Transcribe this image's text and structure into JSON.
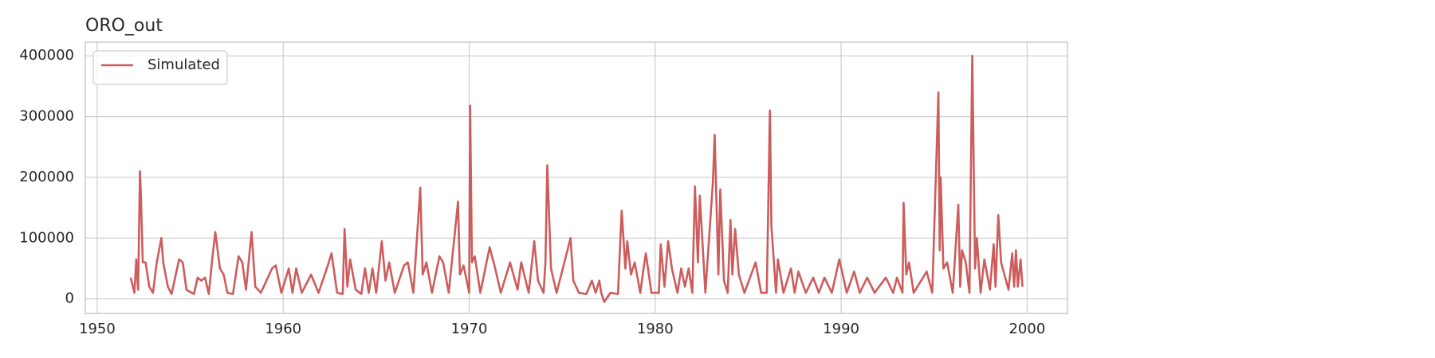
{
  "chart_data": {
    "type": "line",
    "title": "ORO_out",
    "x": [
      1951.8,
      1952.0,
      1952.1,
      1952.2,
      1952.3,
      1952.35,
      1952.45,
      1952.6,
      1952.8,
      1953.0,
      1953.2,
      1953.45,
      1953.55,
      1953.8,
      1954.0,
      1954.4,
      1954.6,
      1954.8,
      1955.2,
      1955.4,
      1955.6,
      1955.8,
      1956.0,
      1956.2,
      1956.35,
      1956.6,
      1956.8,
      1957.0,
      1957.3,
      1957.6,
      1957.8,
      1958.0,
      1958.3,
      1958.5,
      1958.8,
      1959.4,
      1959.6,
      1959.9,
      1960.3,
      1960.5,
      1960.7,
      1961.0,
      1961.5,
      1961.9,
      1962.4,
      1962.6,
      1962.9,
      1963.2,
      1963.3,
      1963.45,
      1963.6,
      1963.9,
      1964.2,
      1964.4,
      1964.6,
      1964.8,
      1965.0,
      1965.3,
      1965.5,
      1965.7,
      1966.0,
      1966.5,
      1966.7,
      1967.0,
      1967.37,
      1967.5,
      1967.7,
      1968.0,
      1968.4,
      1968.6,
      1968.9,
      1969.4,
      1969.5,
      1969.7,
      1970.0,
      1970.05,
      1970.15,
      1970.3,
      1970.6,
      1971.1,
      1971.4,
      1971.7,
      1972.2,
      1972.6,
      1972.8,
      1973.2,
      1973.5,
      1973.7,
      1974.0,
      1974.1,
      1974.2,
      1974.4,
      1974.7,
      1975.45,
      1975.6,
      1975.9,
      1976.3,
      1976.6,
      1976.8,
      1977.0,
      1977.1,
      1977.26,
      1977.6,
      1978.0,
      1978.2,
      1978.4,
      1978.5,
      1978.7,
      1978.9,
      1979.2,
      1979.4,
      1979.5,
      1979.8,
      1980.2,
      1980.3,
      1980.5,
      1980.7,
      1980.9,
      1981.2,
      1981.4,
      1981.6,
      1981.8,
      1982.0,
      1982.14,
      1982.3,
      1982.4,
      1982.7,
      1983.1,
      1983.2,
      1983.4,
      1983.5,
      1983.7,
      1983.9,
      1984.05,
      1984.15,
      1984.3,
      1984.5,
      1984.8,
      1985.4,
      1985.7,
      1986.0,
      1986.17,
      1986.25,
      1986.5,
      1986.6,
      1986.9,
      1987.3,
      1987.5,
      1987.7,
      1988.1,
      1988.5,
      1988.8,
      1989.1,
      1989.5,
      1989.9,
      1990.3,
      1990.7,
      1991.0,
      1991.4,
      1991.8,
      1992.4,
      1992.8,
      1993.0,
      1993.3,
      1993.36,
      1993.5,
      1993.65,
      1993.9,
      1994.6,
      1994.9,
      1995.23,
      1995.3,
      1995.35,
      1995.5,
      1995.7,
      1996.0,
      1996.3,
      1996.4,
      1996.5,
      1996.7,
      1996.9,
      1997.05,
      1997.2,
      1997.3,
      1997.5,
      1997.7,
      1998.0,
      1998.2,
      1998.3,
      1998.45,
      1998.6,
      1999.0,
      1999.2,
      1999.3,
      1999.4,
      1999.5,
      1999.65,
      1999.75
    ],
    "series": [
      {
        "name": "Simulated",
        "color": "#cd5c5c",
        "values": [
          35000,
          10000,
          65000,
          15000,
          210000,
          170000,
          60000,
          60000,
          20000,
          10000,
          60000,
          100000,
          60000,
          20000,
          8000,
          65000,
          60000,
          15000,
          8000,
          35000,
          30000,
          35000,
          8000,
          70000,
          110000,
          50000,
          40000,
          10000,
          8000,
          70000,
          60000,
          15000,
          110000,
          20000,
          10000,
          50000,
          55000,
          10000,
          50000,
          10000,
          50000,
          10000,
          40000,
          10000,
          55000,
          75000,
          10000,
          8000,
          115000,
          20000,
          65000,
          15000,
          8000,
          50000,
          10000,
          50000,
          10000,
          95000,
          30000,
          60000,
          10000,
          55000,
          60000,
          10000,
          183000,
          40000,
          60000,
          10000,
          70000,
          60000,
          10000,
          160000,
          40000,
          55000,
          10000,
          318000,
          60000,
          70000,
          10000,
          85000,
          50000,
          10000,
          60000,
          15000,
          60000,
          10000,
          95000,
          30000,
          10000,
          60000,
          220000,
          50000,
          10000,
          100000,
          30000,
          10000,
          8000,
          30000,
          10000,
          30000,
          10000,
          -5000,
          10000,
          8000,
          145000,
          50000,
          95000,
          40000,
          60000,
          10000,
          55000,
          75000,
          10000,
          10000,
          90000,
          20000,
          95000,
          50000,
          10000,
          50000,
          20000,
          50000,
          10000,
          185000,
          60000,
          170000,
          10000,
          190000,
          270000,
          40000,
          180000,
          30000,
          10000,
          130000,
          40000,
          115000,
          40000,
          10000,
          60000,
          10000,
          10000,
          310000,
          120000,
          10000,
          65000,
          10000,
          50000,
          10000,
          45000,
          10000,
          35000,
          10000,
          35000,
          10000,
          65000,
          10000,
          45000,
          10000,
          35000,
          10000,
          35000,
          10000,
          35000,
          10000,
          158000,
          40000,
          60000,
          10000,
          45000,
          10000,
          340000,
          80000,
          200000,
          50000,
          60000,
          10000,
          155000,
          20000,
          80000,
          60000,
          10000,
          400000,
          50000,
          100000,
          10000,
          65000,
          15000,
          90000,
          20000,
          138000,
          60000,
          15000,
          75000,
          20000,
          80000,
          20000,
          65000,
          20000
        ]
      }
    ],
    "xlim": [
      1949.36,
      2002.17
    ],
    "xticks": [
      1950,
      1960,
      1970,
      1980,
      1990,
      2000
    ],
    "ylim": [
      -24000,
      422500
    ],
    "yticks": [
      0,
      100000,
      200000,
      300000,
      400000
    ],
    "grid": true,
    "legend": "upper left"
  }
}
